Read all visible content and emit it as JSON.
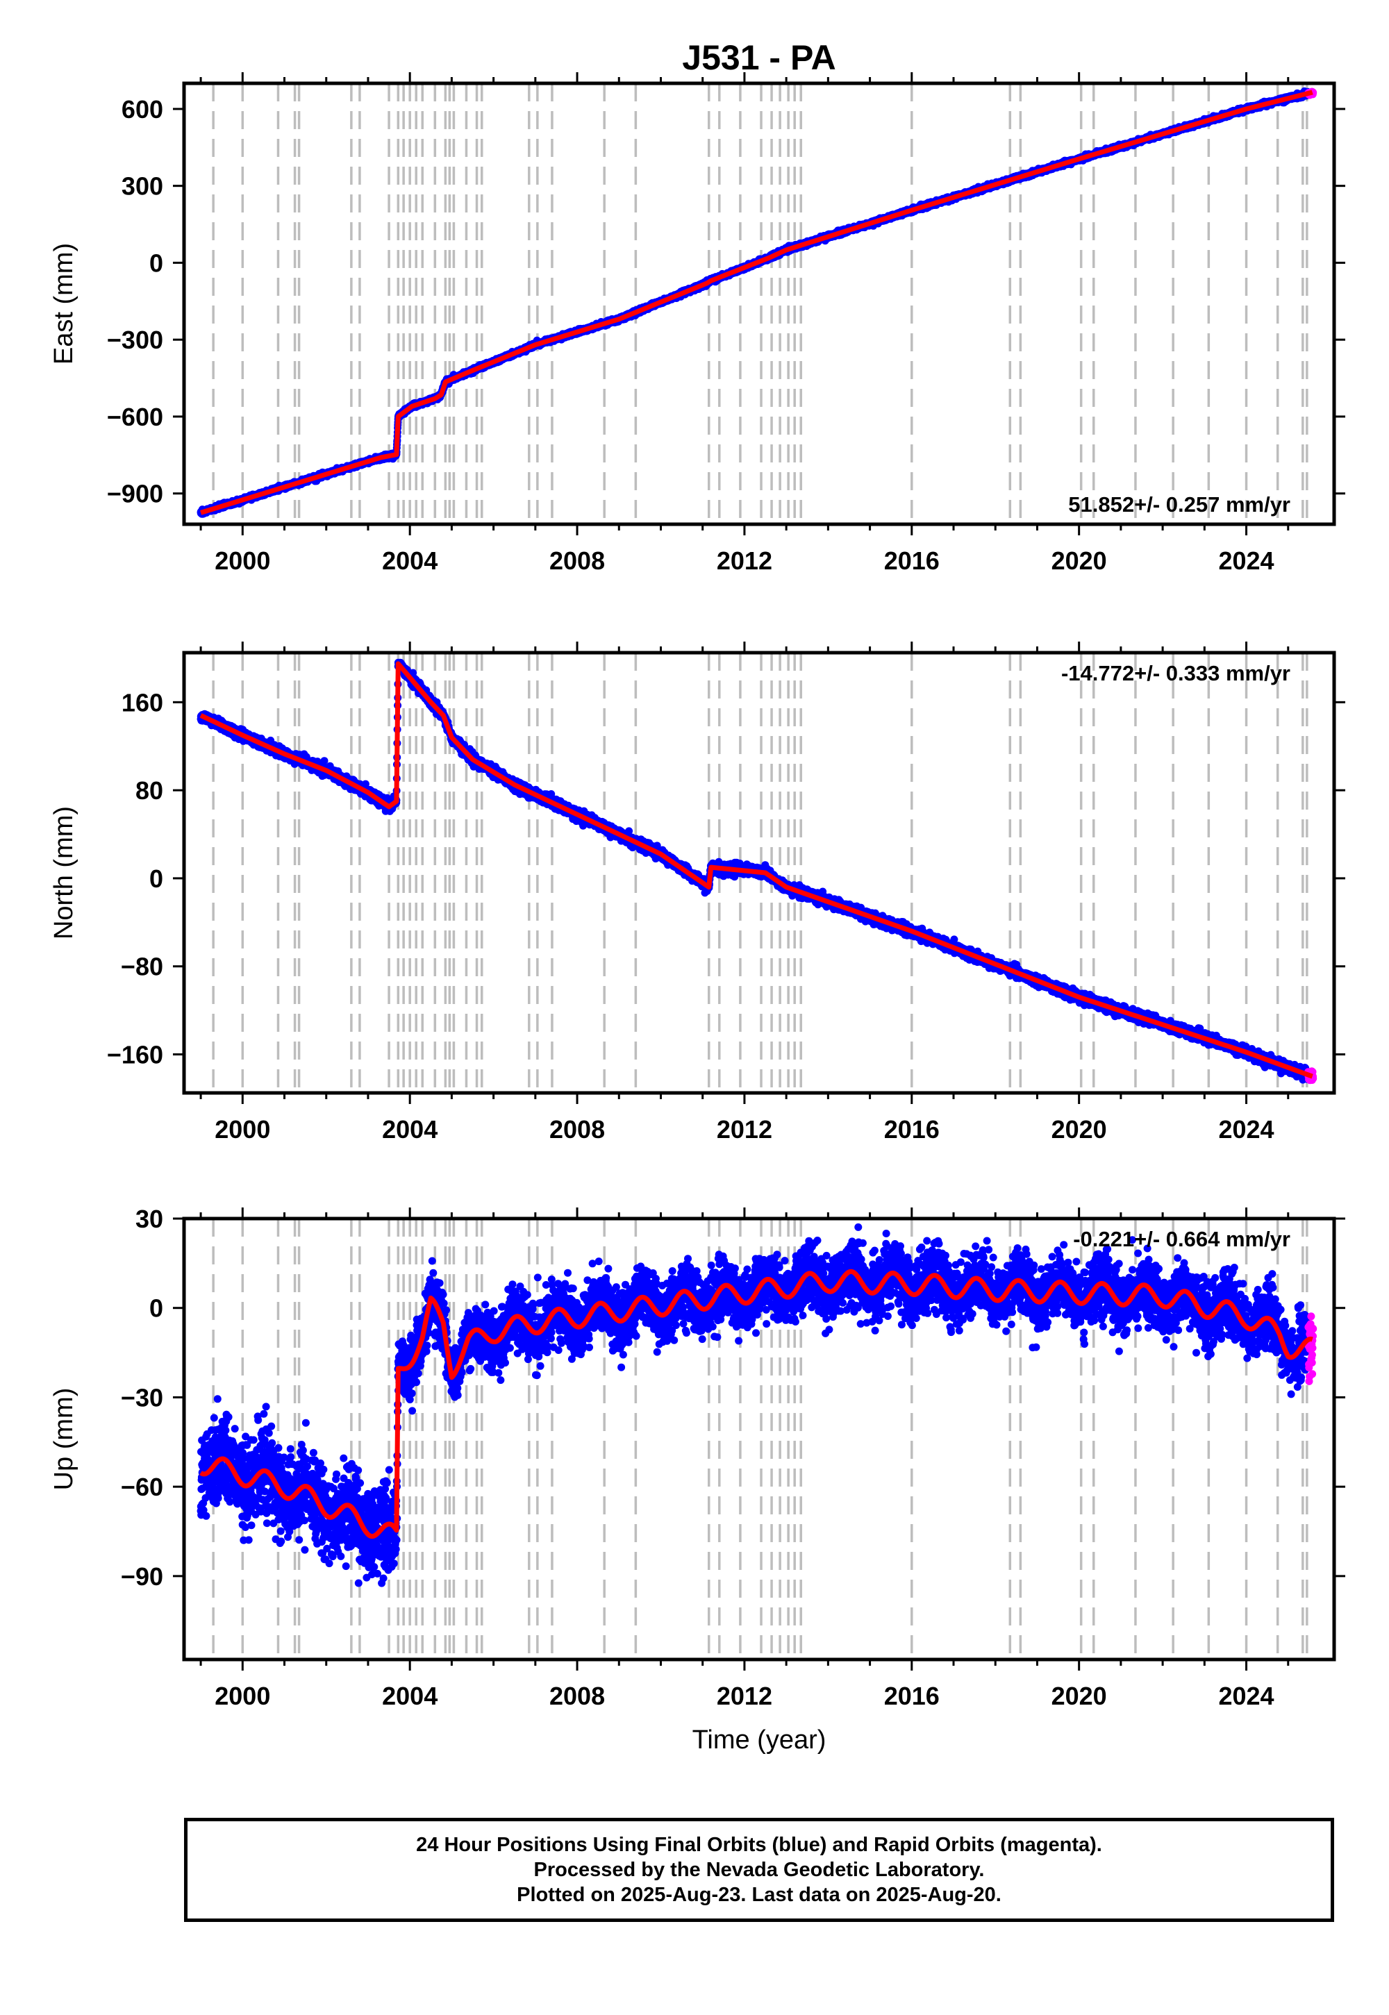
{
  "chart_data": {
    "title": "J531 - PA",
    "type": "scatter",
    "colors": {
      "final": "#0000ff",
      "rapid": "#ff00ff",
      "model": "#ff0000",
      "events": "#bdbdbd"
    },
    "xlim": [
      1998.6,
      2026.1
    ],
    "xticks": [
      2000,
      2004,
      2008,
      2012,
      2016,
      2020,
      2024
    ],
    "xlabel": "Time (year)",
    "event_lines": [
      1999.3,
      2000.0,
      2000.85,
      2001.25,
      2001.35,
      2002.6,
      2002.8,
      2003.5,
      2003.72,
      2003.85,
      2004.0,
      2004.15,
      2004.3,
      2004.6,
      2004.85,
      2004.95,
      2005.05,
      2005.35,
      2005.6,
      2005.72,
      2006.85,
      2007.05,
      2007.4,
      2008.65,
      2009.4,
      2011.15,
      2011.4,
      2011.9,
      2012.4,
      2012.65,
      2012.85,
      2013.05,
      2013.2,
      2013.35,
      2016.0,
      2018.35,
      2018.6,
      2020.05,
      2020.35,
      2021.35,
      2022.25,
      2023.1,
      2024.0,
      2024.75,
      2025.35,
      2025.45
    ],
    "last_rapid_start": 2025.48,
    "panels": [
      {
        "name": "east",
        "ylabel": "East (mm)",
        "ylim": [
          -1020,
          700
        ],
        "yticks": [
          -900,
          -600,
          -300,
          0,
          300,
          600
        ],
        "rate_label": "51.852+/- 0.257 mm/yr",
        "rate_position": "bottom-right",
        "scatter_sigma": 4,
        "model_breakpoints": [
          [
            1999.0,
            -975
          ],
          [
            2003.3,
            -760
          ],
          [
            2003.68,
            -748
          ],
          [
            2003.72,
            -600
          ],
          [
            2004.05,
            -560
          ],
          [
            2004.6,
            -530
          ],
          [
            2004.75,
            -515
          ],
          [
            2004.85,
            -465
          ],
          [
            2005.5,
            -420
          ],
          [
            2007.0,
            -320
          ],
          [
            2009.0,
            -220
          ],
          [
            2011.1,
            -80
          ],
          [
            2011.2,
            -70
          ],
          [
            2012.6,
            20
          ],
          [
            2013.0,
            50
          ],
          [
            2016.0,
            205
          ],
          [
            2020.0,
            405
          ],
          [
            2024.0,
            600
          ],
          [
            2025.58,
            665
          ]
        ]
      },
      {
        "name": "north",
        "ylabel": "North (mm)",
        "ylim": [
          -195,
          205
        ],
        "yticks": [
          -160,
          -80,
          0,
          80,
          160
        ],
        "rate_label": "-14.772+/- 0.333 mm/yr",
        "rate_position": "top-right",
        "scatter_sigma": 2.2,
        "model_breakpoints": [
          [
            1999.0,
            148
          ],
          [
            2000.0,
            130
          ],
          [
            2001.0,
            113
          ],
          [
            2002.0,
            98
          ],
          [
            2003.0,
            78
          ],
          [
            2003.5,
            65
          ],
          [
            2003.68,
            70
          ],
          [
            2003.72,
            195
          ],
          [
            2004.5,
            160
          ],
          [
            2004.8,
            148
          ],
          [
            2005.0,
            128
          ],
          [
            2005.5,
            108
          ],
          [
            2006.5,
            85
          ],
          [
            2008.0,
            58
          ],
          [
            2010.0,
            22
          ],
          [
            2011.15,
            -8
          ],
          [
            2011.2,
            10
          ],
          [
            2012.5,
            5
          ],
          [
            2013.0,
            -8
          ],
          [
            2016.0,
            -48
          ],
          [
            2020.0,
            -108
          ],
          [
            2024.0,
            -158
          ],
          [
            2025.58,
            -180
          ]
        ]
      },
      {
        "name": "up",
        "ylabel": "Up (mm)",
        "ylim": [
          -118,
          30
        ],
        "yticks": [
          -90,
          -60,
          -30,
          0,
          30
        ],
        "rate_label": "-0.221+/- 0.664 mm/yr",
        "rate_position": "top-right",
        "scatter_sigma": 5,
        "seasonal_amp": 3.5,
        "model_breakpoints": [
          [
            1999.0,
            -52
          ],
          [
            2001.0,
            -60
          ],
          [
            2003.68,
            -77
          ],
          [
            2003.72,
            -22
          ],
          [
            2004.3,
            -10
          ],
          [
            2004.5,
            0
          ],
          [
            2004.8,
            -5
          ],
          [
            2005.0,
            -20
          ],
          [
            2005.4,
            -12
          ],
          [
            2006.0,
            -8
          ],
          [
            2007.0,
            -5
          ],
          [
            2008.0,
            -3
          ],
          [
            2010.0,
            1
          ],
          [
            2012.0,
            5
          ],
          [
            2014.0,
            9
          ],
          [
            2016.0,
            8
          ],
          [
            2018.0,
            6
          ],
          [
            2020.0,
            5
          ],
          [
            2022.0,
            4
          ],
          [
            2024.0,
            -3
          ],
          [
            2024.8,
            -9
          ],
          [
            2025.0,
            -13
          ],
          [
            2025.58,
            -14
          ]
        ]
      }
    ]
  },
  "footer": {
    "line1": "24 Hour Positions Using Final Orbits (blue) and Rapid Orbits (magenta).",
    "line2": "Processed by the Nevada Geodetic Laboratory.",
    "line3": "Plotted on 2025-Aug-23. Last data on 2025-Aug-20."
  }
}
